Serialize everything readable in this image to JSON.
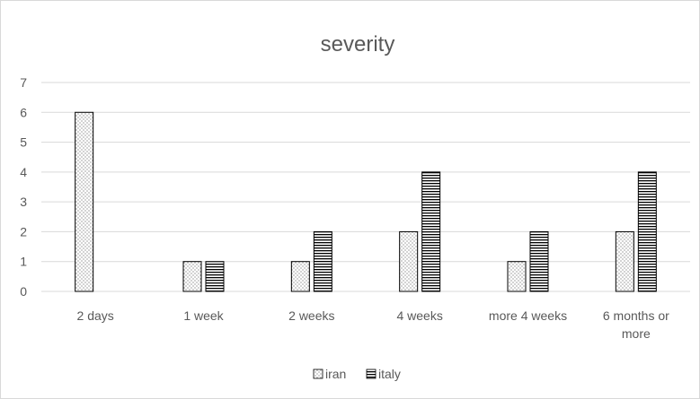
{
  "chart_data": {
    "type": "bar",
    "title": "severity",
    "categories": [
      "2 days",
      "1 week",
      "2 weeks",
      "4 weeks",
      "more 4 weeks",
      "6 months or more"
    ],
    "series": [
      {
        "name": "iran",
        "values": [
          6,
          1,
          1,
          2,
          1,
          2
        ],
        "pattern": "dotted"
      },
      {
        "name": "italy",
        "values": [
          0,
          1,
          2,
          4,
          2,
          4
        ],
        "pattern": "horizontal-lines"
      }
    ],
    "ylim": [
      0,
      7
    ],
    "yticks": [
      0,
      1,
      2,
      3,
      4,
      5,
      6,
      7
    ],
    "grid": true,
    "legend_position": "bottom",
    "colors": {
      "bar_stroke": "#000000",
      "grid": "#d9d9d9",
      "text": "#595959",
      "frame": "#d9d9d9"
    }
  }
}
